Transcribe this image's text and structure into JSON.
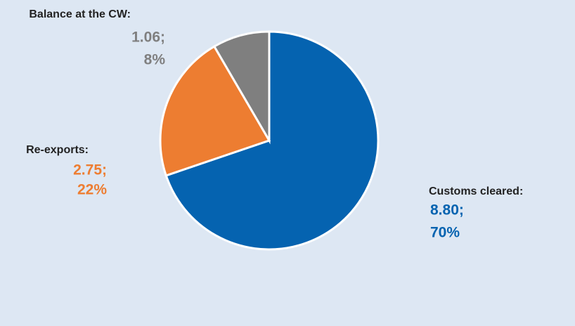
{
  "chart_data": {
    "type": "pie",
    "categories": [
      "Customs cleared:",
      "Re-exports:",
      "Balance at the CW:"
    ],
    "values": [
      8.8,
      2.75,
      1.06
    ],
    "value_labels": [
      "8.80;",
      "2.75;",
      "1.06;"
    ],
    "percents": [
      70,
      22,
      8
    ],
    "percent_labels": [
      "70%",
      "22%",
      "8%"
    ],
    "colors": [
      "#0563b0",
      "#ed7d31",
      "#7f7f7f"
    ]
  }
}
